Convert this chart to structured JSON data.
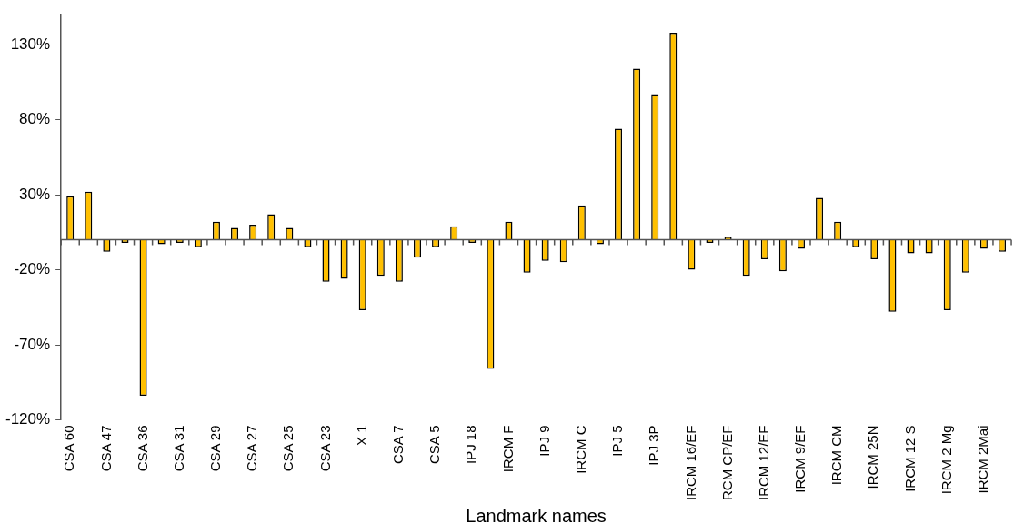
{
  "chart_data": {
    "type": "bar",
    "xlabel": "Landmark names",
    "categories": [
      "CSA 60",
      null,
      "CSA 47",
      null,
      "CSA 36",
      null,
      "CSA 31",
      null,
      "CSA 29",
      null,
      "CSA 27",
      null,
      "CSA 25",
      null,
      "CSA 23",
      null,
      "X 1",
      null,
      "CSA 7",
      null,
      "CSA 5",
      null,
      "IPJ 18",
      null,
      "IRCM F",
      null,
      "IPJ 9",
      null,
      "IRCM C",
      null,
      "IPJ 5",
      null,
      "IPJ 3P",
      null,
      "IRCM 16/EF",
      null,
      "RCM CP/EF",
      null,
      "IRCM 12/EF",
      null,
      "IRCM 9/EF",
      null,
      "IRCM CM",
      null,
      "IRCM 25N",
      null,
      "IRCM 12 S",
      null,
      "IRCM 2 Mg",
      null,
      "IRCM 2Mai",
      null
    ],
    "values": [
      29,
      32,
      -8,
      -2,
      -104,
      -3,
      -2,
      -5,
      12,
      8,
      10,
      17,
      8,
      -5,
      -28,
      -26,
      -47,
      -24,
      -28,
      -12,
      -5,
      9,
      -2,
      -86,
      12,
      -22,
      -14,
      -15,
      23,
      -3,
      74,
      114,
      97,
      138,
      -20,
      -2,
      2,
      -24,
      -13,
      -21,
      -6,
      28,
      12,
      -5,
      -13,
      -48,
      -9,
      -9,
      -47,
      -22,
      -6,
      -8
    ],
    "color": "#ffc000",
    "ylim": [
      -120,
      150
    ],
    "yticks": [
      {
        "value": -120,
        "label": "-120%"
      },
      {
        "value": -70,
        "label": "-70%"
      },
      {
        "value": -20,
        "label": "-20%"
      },
      {
        "value": 30,
        "label": "30%"
      },
      {
        "value": 80,
        "label": "80%"
      },
      {
        "value": 130,
        "label": "130%"
      }
    ],
    "grid": false,
    "legend": false
  }
}
